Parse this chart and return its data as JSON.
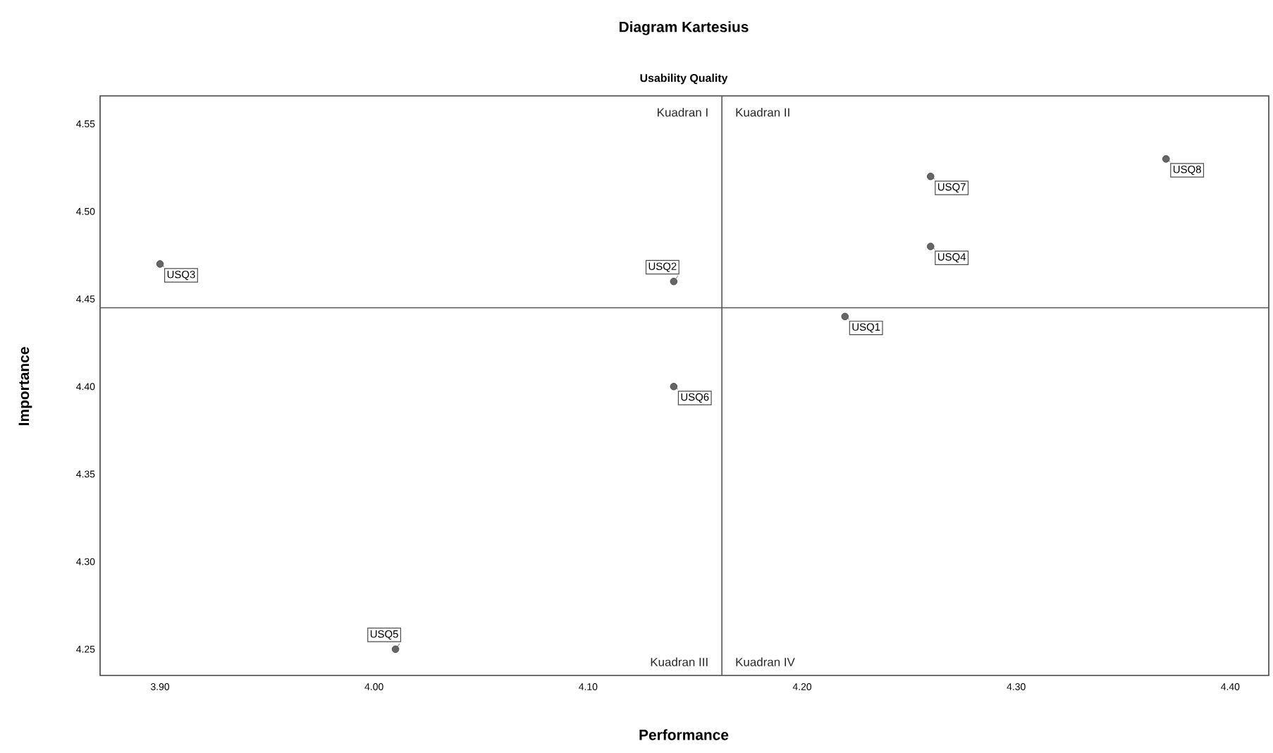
{
  "chart_data": {
    "type": "scatter",
    "title": "Diagram Kartesius",
    "subtitle": "Usability Quality",
    "xlabel": "Performance",
    "ylabel": "Importance",
    "xlim": [
      3.872,
      4.418
    ],
    "ylim": [
      4.235,
      4.566
    ],
    "xticks": [
      {
        "value": 3.9,
        "label": "3.90"
      },
      {
        "value": 4.0,
        "label": "4.00"
      },
      {
        "value": 4.1,
        "label": "4.10"
      },
      {
        "value": 4.2,
        "label": "4.20"
      },
      {
        "value": 4.3,
        "label": "4.30"
      },
      {
        "value": 4.4,
        "label": "4.40"
      }
    ],
    "yticks": [
      {
        "value": 4.25,
        "label": "4.25"
      },
      {
        "value": 4.3,
        "label": "4.30"
      },
      {
        "value": 4.35,
        "label": "4.35"
      },
      {
        "value": 4.4,
        "label": "4.40"
      },
      {
        "value": 4.45,
        "label": "4.45"
      },
      {
        "value": 4.5,
        "label": "4.50"
      },
      {
        "value": 4.55,
        "label": "4.55"
      }
    ],
    "series": [
      {
        "color": "#666666",
        "x": [
          4.22,
          4.14,
          3.9,
          4.26,
          4.01,
          4.14,
          4.26,
          4.37
        ],
        "values": [
          4.44,
          4.46,
          4.47,
          4.48,
          4.25,
          4.4,
          4.52,
          4.53
        ]
      }
    ],
    "marker": "circle",
    "grid": false,
    "ref_lines": [
      {
        "axis": "x",
        "value": 4.1625
      },
      {
        "axis": "y",
        "value": 4.445
      }
    ],
    "annotations": [
      "Kuadran I",
      "Kuadran II",
      "Kuadran III",
      "Kuadran IV",
      {
        "text": "USQ1",
        "x": 4.22,
        "y": 4.44
      },
      {
        "text": "USQ2",
        "x": 4.14,
        "y": 4.46
      },
      {
        "text": "USQ3",
        "x": 3.9,
        "y": 4.47
      },
      {
        "text": "USQ4",
        "x": 4.26,
        "y": 4.48
      },
      {
        "text": "USQ5",
        "x": 4.01,
        "y": 4.25
      },
      {
        "text": "USQ6",
        "x": 4.14,
        "y": 4.4
      },
      {
        "text": "USQ7",
        "x": 4.26,
        "y": 4.52
      },
      {
        "text": "USQ8",
        "x": 4.37,
        "y": 4.53
      }
    ]
  }
}
